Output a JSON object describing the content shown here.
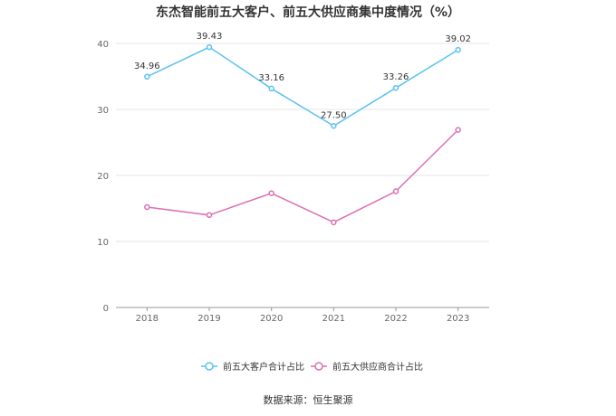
{
  "chart_data": {
    "type": "line",
    "title": "东杰智能前五大客户、前五大供应商集中度情况（%）",
    "categories": [
      "2018",
      "2019",
      "2020",
      "2021",
      "2022",
      "2023"
    ],
    "ylim": [
      0,
      40
    ],
    "yticks": [
      0,
      10,
      20,
      30,
      40
    ],
    "grid": true,
    "legend_position": "bottom",
    "series": [
      {
        "name": "前五大客户合计占比",
        "values": [
          34.96,
          39.43,
          33.16,
          27.5,
          33.26,
          39.02
        ],
        "labels": [
          "34.96",
          "39.43",
          "33.16",
          "27.50",
          "33.26",
          "39.02"
        ],
        "color": "#5bc2f0"
      },
      {
        "name": "前五大供应商合计占比",
        "values": [
          15.2,
          14.0,
          17.3,
          12.9,
          17.6,
          26.9
        ],
        "color": "#dc6fb4"
      }
    ]
  },
  "source_text": "数据来源：恒生聚源"
}
